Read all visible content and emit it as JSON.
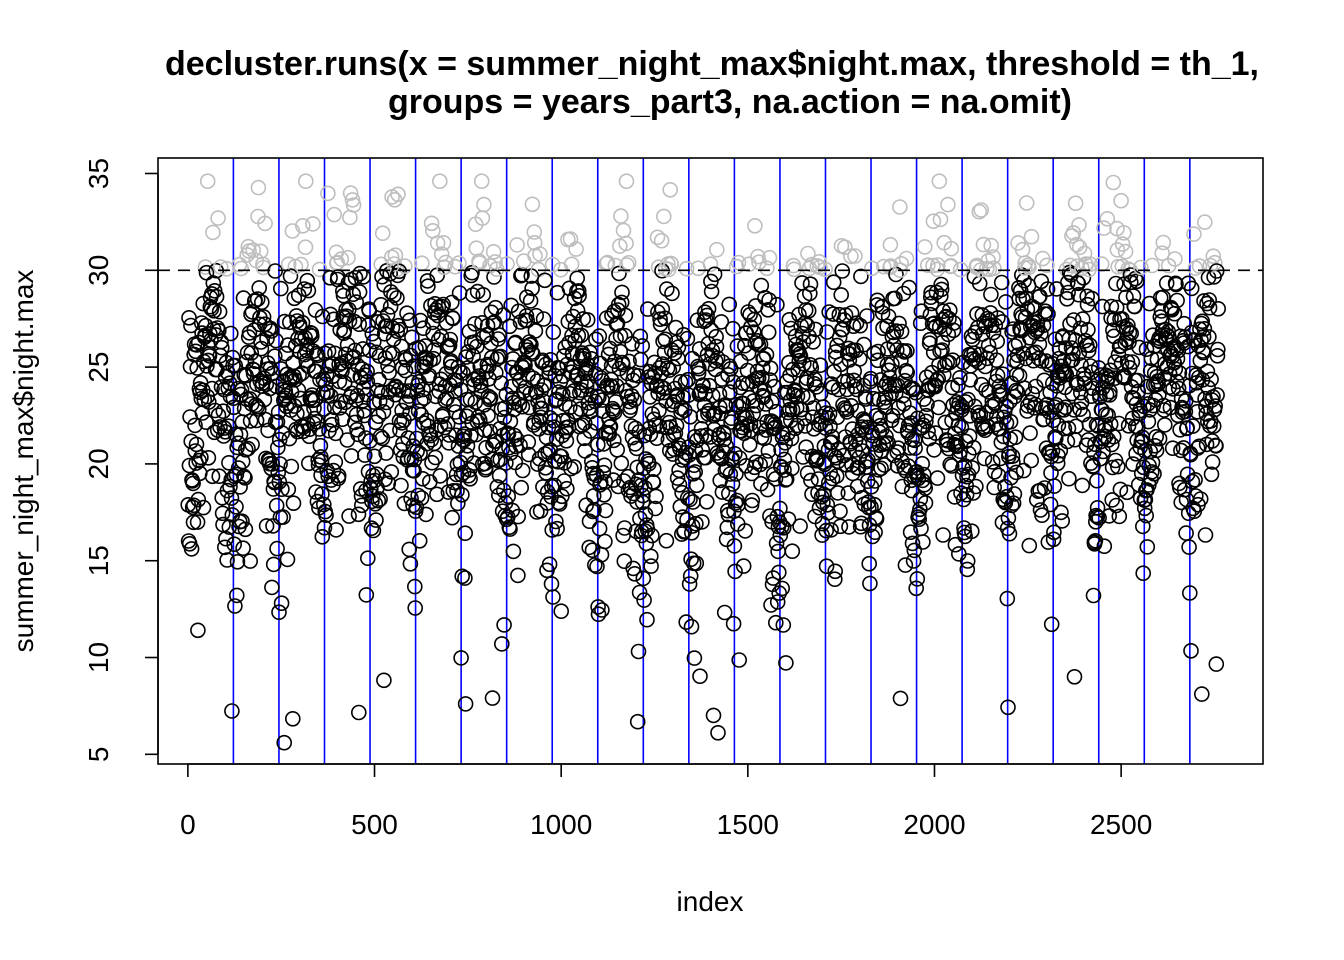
{
  "chart_data": {
    "type": "scatter",
    "title_line1": "decluster.runs(x = summer_night_max$night.max, threshold = th_1,",
    "title_line2": "groups = years_part3, na.action = na.omit)",
    "xlabel": "index",
    "ylabel": "summer_night_max$night.max",
    "xlim": [
      -80,
      2880
    ],
    "ylim": [
      4.5,
      35.8
    ],
    "x_ticks": [
      0,
      500,
      1000,
      1500,
      2000,
      2500
    ],
    "y_ticks": [
      5,
      10,
      15,
      20,
      25,
      30,
      35
    ],
    "threshold": 30,
    "group_boundaries": [
      122,
      244,
      366,
      488,
      610,
      732,
      854,
      976,
      1098,
      1220,
      1342,
      1464,
      1586,
      1708,
      1830,
      1952,
      2074,
      2196,
      2318,
      2440,
      2562,
      2684
    ],
    "n_points": 2760,
    "group_size": 122,
    "points_color": "#000000",
    "exceedance_color": "#bebebe",
    "boundary_color": "#0000ff",
    "threshold_line_color": "#000000"
  }
}
